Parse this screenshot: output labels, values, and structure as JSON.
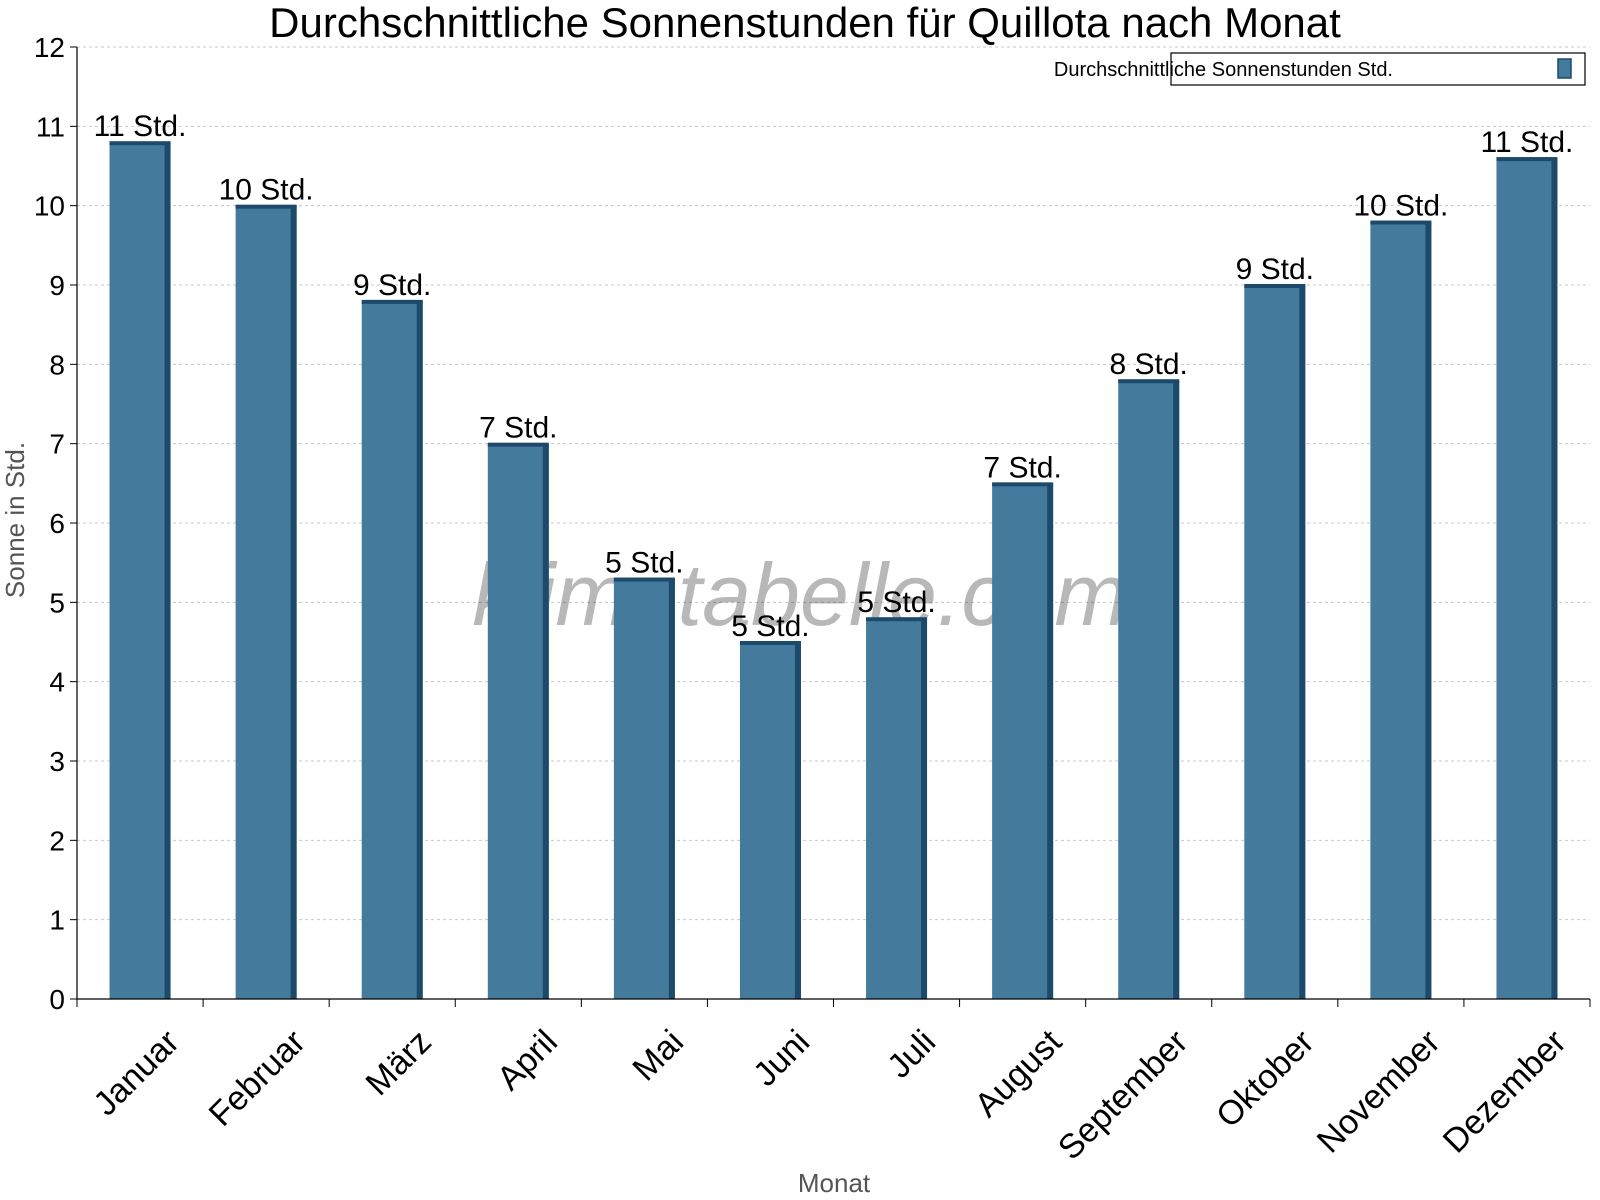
{
  "chart_data": {
    "type": "bar",
    "title": "Durchschnittliche Sonnenstunden für Quillota nach Monat",
    "xlabel": "Monat",
    "ylabel": "Sonne in Std.",
    "ylim": [
      0,
      12
    ],
    "yticks": [
      "0",
      "1",
      "2",
      "3",
      "4",
      "5",
      "6",
      "7",
      "8",
      "9",
      "10",
      "11",
      "12"
    ],
    "grid": true,
    "legend_position": "top-right",
    "categories": [
      "Januar",
      "Februar",
      "März",
      "April",
      "Mai",
      "Juni",
      "Juli",
      "August",
      "September",
      "Oktober",
      "November",
      "Dezember"
    ],
    "series": [
      {
        "name": "Durchschnittliche Sonnenstunden Std.",
        "values": [
          10.8,
          10.0,
          8.8,
          7.0,
          5.3,
          4.5,
          4.8,
          6.5,
          7.8,
          9.0,
          9.8,
          10.6
        ],
        "data_labels": [
          "11 Std.",
          "10 Std.",
          "9 Std.",
          "7 Std.",
          "5 Std.",
          "5 Std.",
          "5 Std.",
          "7 Std.",
          "8 Std.",
          "9 Std.",
          "10 Std.",
          "11 Std."
        ],
        "color": "#447a9c",
        "shade_color": "#1c4a6b"
      }
    ]
  },
  "watermark": "klimatabelle.com"
}
